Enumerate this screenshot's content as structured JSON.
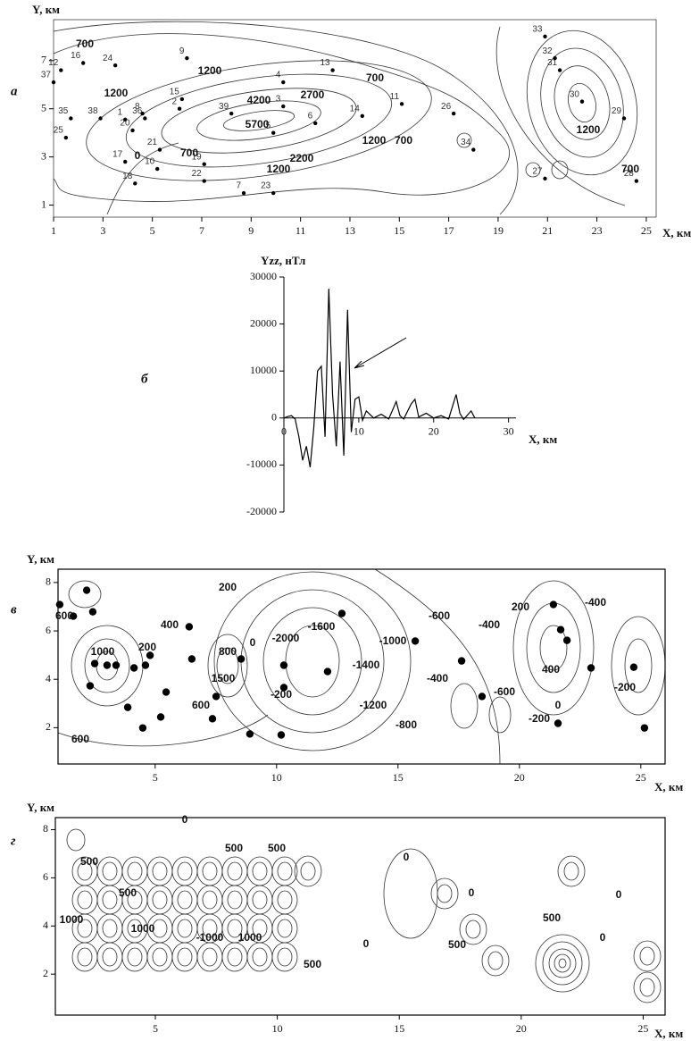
{
  "chart_data": [
    {
      "type": "scatter",
      "panel": "а",
      "xlabel": "X, км",
      "ylabel": "Y, км",
      "xlim": [
        1,
        25.4
      ],
      "ylim": [
        0.5,
        8.7
      ],
      "xticks": [
        1,
        3,
        5,
        7,
        9,
        11,
        13,
        15,
        17,
        19,
        21,
        23,
        25
      ],
      "yticks": [
        1,
        3,
        5,
        7
      ],
      "x": [
        3.9,
        6.1,
        10.3,
        10.3,
        9.9,
        11.6,
        8.7,
        4.6,
        6.4,
        5.2,
        15.1,
        1.3,
        12.3,
        13.5,
        6.2,
        2.2,
        3.9,
        4.3,
        7.1,
        4.2,
        5.3,
        7.1,
        9.9,
        3.5,
        1.5,
        17.2,
        20.9,
        24.6,
        24.1,
        22.4,
        21.5,
        21.3,
        20.9,
        18.0,
        1.7,
        4.7,
        1.0,
        2.9,
        8.2
      ],
      "y": [
        4.55,
        5.0,
        5.1,
        6.1,
        4.0,
        4.4,
        1.5,
        4.8,
        7.1,
        2.5,
        5.2,
        6.6,
        6.6,
        4.7,
        5.4,
        6.9,
        2.8,
        1.9,
        2.7,
        4.1,
        3.3,
        2.0,
        1.5,
        6.8,
        3.8,
        4.8,
        2.1,
        2.0,
        4.6,
        5.3,
        6.6,
        7.1,
        8.0,
        3.3,
        4.6,
        4.6,
        6.1,
        4.6,
        4.8
      ],
      "labels": [
        "1",
        "2",
        "3",
        "4",
        "5",
        "6",
        "7",
        "8",
        "9",
        "10",
        "11",
        "12",
        "13",
        "14",
        "15",
        "16",
        "17",
        "18",
        "19",
        "20",
        "21",
        "22",
        "23",
        "24",
        "25",
        "26",
        "27",
        "28",
        "29",
        "30",
        "31",
        "32",
        "33",
        "34",
        "35",
        "36",
        "37",
        "38",
        "39"
      ],
      "annotations": [
        "700",
        "1200",
        "1200",
        "4200",
        "5700",
        "2700",
        "2200",
        "1200",
        "700",
        "0",
        "700",
        "1200",
        "700",
        "1200",
        "700"
      ]
    },
    {
      "type": "line",
      "panel": "б",
      "xlabel": "X, км",
      "ylabel": "Yzz, нТл",
      "xlim": [
        0,
        31
      ],
      "ylim": [
        -20000,
        30000
      ],
      "xticks": [
        0,
        10,
        20,
        30
      ],
      "yticks": [
        -20000,
        -10000,
        0,
        10000,
        20000,
        30000
      ],
      "x": [
        0,
        0.5,
        1,
        1.5,
        2,
        2.5,
        3,
        3.5,
        4,
        4.5,
        5,
        5.5,
        6,
        6.5,
        7,
        7.5,
        8,
        8.5,
        9,
        9.5,
        10,
        10.5,
        11,
        12,
        13,
        14,
        15,
        15.5,
        16,
        17,
        17.5,
        18,
        19,
        20,
        21,
        22,
        23,
        23.5,
        24,
        25,
        25.5
      ],
      "values": [
        0,
        300,
        500,
        -200,
        -4000,
        -9000,
        -6000,
        -10500,
        -2000,
        10000,
        11000,
        -4000,
        27500,
        5000,
        -6000,
        12000,
        -8000,
        23000,
        -3000,
        4000,
        4500,
        -500,
        1500,
        0,
        800,
        -200,
        3500,
        500,
        -200,
        3000,
        4000,
        200,
        1000,
        0,
        500,
        -200,
        5000,
        1000,
        -300,
        1500,
        0
      ],
      "color": "#000000"
    },
    {
      "type": "scatter",
      "panel": "в",
      "xlabel": "X, км",
      "ylabel": "Y, км",
      "xlim": [
        1,
        26
      ],
      "ylim": [
        0.5,
        8.55
      ],
      "xticks": [
        5,
        10,
        15,
        20,
        25
      ],
      "yticks": [
        2,
        4,
        6,
        8
      ],
      "x": [
        1.07,
        2.18,
        1.63,
        2.43,
        2.51,
        3.02,
        3.39,
        4.13,
        4.6,
        4.79,
        2.32,
        3.87,
        5.45,
        5.23,
        4.49,
        6.4,
        6.51,
        7.36,
        7.51,
        8.54,
        10.3,
        10.3,
        10.19,
        8.9,
        12.69,
        12.1,
        15.71,
        17.62,
        18.46,
        21.4,
        21.7,
        21.96,
        22.95,
        24.71,
        25.15,
        21.59
      ],
      "y": [
        7.09,
        7.68,
        6.61,
        6.79,
        4.65,
        4.58,
        4.58,
        4.47,
        4.58,
        4.99,
        3.73,
        2.84,
        3.47,
        2.44,
        1.99,
        6.17,
        4.84,
        2.37,
        3.29,
        4.84,
        4.58,
        3.66,
        1.7,
        1.74,
        6.72,
        4.32,
        5.58,
        4.76,
        3.29,
        7.09,
        6.05,
        5.61,
        4.47,
        4.5,
        1.99,
        2.18
      ],
      "annotations": [
        "600",
        "1000",
        "200",
        "400",
        "200",
        "800",
        "1500",
        "600",
        "0",
        "-2000",
        "-200",
        "-1600",
        "-1400",
        "-1000",
        "-1200",
        "-800",
        "-600",
        "-400",
        "-400",
        "-600",
        "200",
        "400",
        "-200",
        "0",
        "-400",
        "-200",
        "600"
      ]
    },
    {
      "type": "contour",
      "panel": "г",
      "xlabel": "X, км",
      "ylabel": "Y, км",
      "xlim": [
        0.9,
        25.9
      ],
      "ylim": [
        0.3,
        8.5
      ],
      "xticks": [
        5,
        10,
        15,
        20,
        25
      ],
      "yticks": [
        2,
        4,
        6,
        8
      ],
      "annotations": [
        "500",
        "1000",
        "500",
        "1000",
        "0",
        "-1000",
        "500",
        "1000",
        "500",
        "500",
        "0",
        "0",
        "500",
        "0",
        "500",
        "0",
        "0"
      ]
    }
  ]
}
